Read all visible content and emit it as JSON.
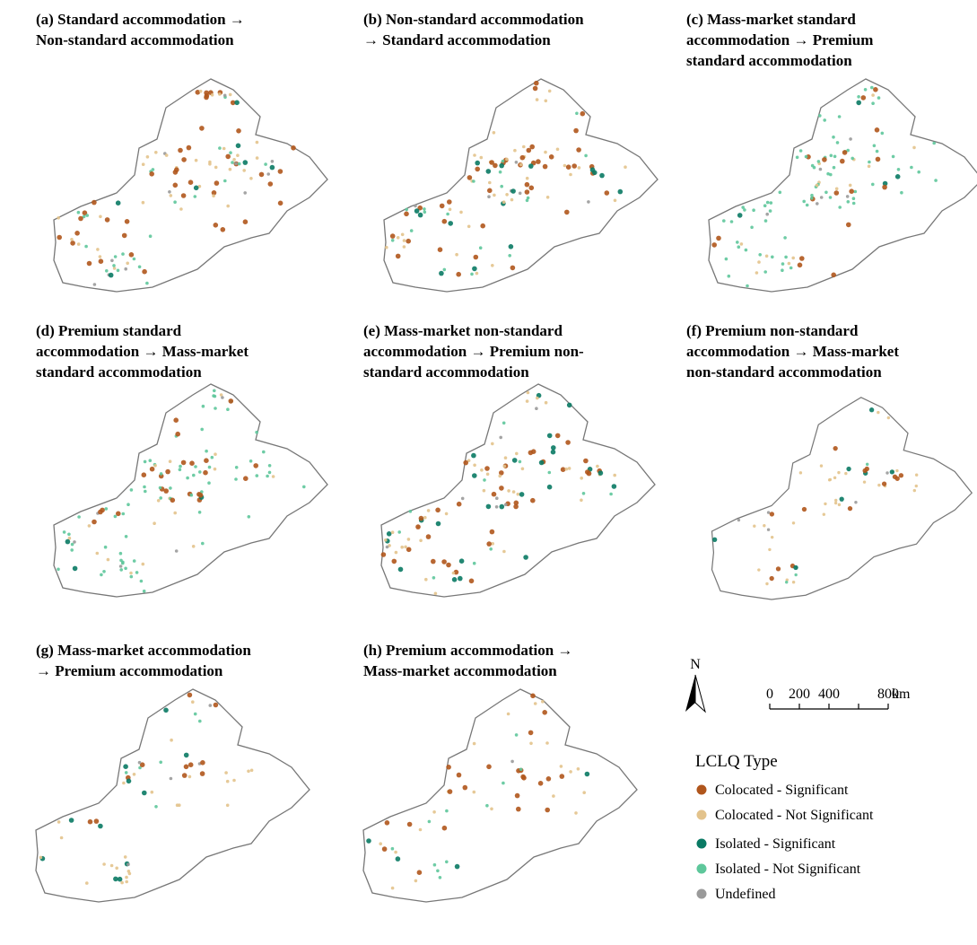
{
  "panels": [
    {
      "title_lines": [
        "(a) Standard accommodation →",
        "Non-standard accommodation"
      ]
    },
    {
      "title_lines": [
        "(b) Non-standard accommodation",
        "→ Standard accommodation"
      ]
    },
    {
      "title_lines": [
        "(c) Mass-market standard",
        "accommodation → Premium",
        "standard accommodation"
      ]
    },
    {
      "title_lines": [
        "(d) Premium standard",
        "accommodation → Mass-market",
        "standard accommodation"
      ]
    },
    {
      "title_lines": [
        "(e) Mass-market non-standard",
        "accommodation → Premium non-",
        "standard accommodation"
      ]
    },
    {
      "title_lines": [
        "(f) Premium non-standard",
        "accommodation → Mass-market",
        "non-standard accommodation"
      ]
    },
    {
      "title_lines": [
        "(g) Mass-market accommodation",
        "→ Premium accommodation"
      ]
    },
    {
      "title_lines": [
        "(h) Premium accommodation →",
        "Mass-market accommodation"
      ]
    }
  ],
  "north_label": "N",
  "scale": {
    "ticks": [
      0,
      200,
      400,
      800
    ],
    "unit": "km"
  },
  "legend": {
    "title": "LCLQ Type",
    "items": [
      {
        "label": "Colocated - Significant",
        "color": "#b0561c"
      },
      {
        "label": "Colocated - Not Significant",
        "color": "#e3c38c"
      },
      {
        "label": "Isolated - Significant",
        "color": "#0a7a64"
      },
      {
        "label": "Isolated - Not Significant",
        "color": "#5ec79b"
      },
      {
        "label": "Undefined",
        "color": "#9a9a9a"
      }
    ]
  }
}
